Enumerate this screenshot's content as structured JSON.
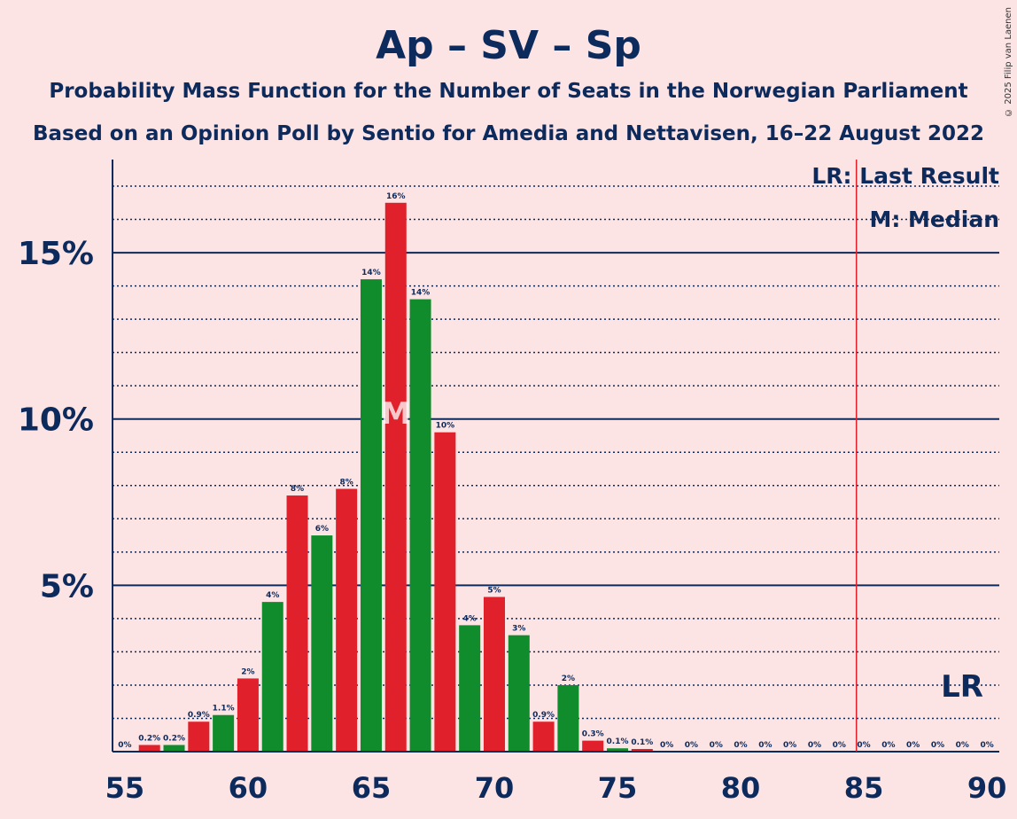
{
  "header": {
    "title": "Ap – SV – Sp",
    "subtitle1": "Probability Mass Function for the Number of Seats in the Norwegian Parliament",
    "subtitle2": "Based on an Opinion Poll by Sentio for Amedia and Nettavisen, 16–22 August 2022",
    "copyright": "© 2025 Filip van Laenen"
  },
  "legend": {
    "last_result": "LR: Last Result",
    "median": "M: Median"
  },
  "colors": {
    "background": "#fde4e4",
    "text": "#0c2a5c",
    "red_bar": "#e0202a",
    "green_bar": "#108c2c",
    "last_result_line": "#e0202a"
  },
  "chart_data": {
    "type": "bar",
    "x": [
      55,
      56,
      57,
      58,
      59,
      60,
      61,
      62,
      63,
      64,
      65,
      66,
      67,
      68,
      69,
      70,
      71,
      72,
      73,
      74,
      75,
      76,
      77,
      78,
      79,
      80,
      81,
      82,
      83,
      84,
      85,
      86,
      87,
      88,
      89,
      90
    ],
    "values": [
      0.0,
      0.2,
      0.2,
      0.9,
      1.1,
      2.2,
      4.5,
      7.7,
      6.5,
      7.9,
      14.2,
      16.5,
      13.6,
      9.6,
      3.8,
      4.65,
      3.5,
      0.9,
      2.0,
      0.33,
      0.1,
      0.08,
      0,
      0,
      0,
      0,
      0,
      0,
      0,
      0,
      0,
      0,
      0,
      0,
      0,
      0
    ],
    "labels": [
      "0%",
      "0.2%",
      "0.2%",
      "0.9%",
      "1.1%",
      "2%",
      "4%",
      "8%",
      "6%",
      "8%",
      "14%",
      "16%",
      "14%",
      "10%",
      "4%",
      "5%",
      "3%",
      "0.9%",
      "2%",
      "0.3%",
      "0.1%",
      "0.1%",
      "0%",
      "0%",
      "0%",
      "0%",
      "0%",
      "0%",
      "0%",
      "0%",
      "0%",
      "0%",
      "0%",
      "0%",
      "0%",
      "0%"
    ],
    "x_ticks": [
      55,
      60,
      65,
      70,
      75,
      80,
      85,
      90
    ],
    "x_tick_labels": [
      "55",
      "60",
      "65",
      "70",
      "75",
      "80",
      "85",
      "90"
    ],
    "y_ticks": [
      5,
      10,
      15
    ],
    "y_tick_labels": [
      "5%",
      "10%",
      "15%"
    ],
    "y_minor_step": 1,
    "ylim": [
      0,
      17.8
    ],
    "xlim": [
      54.5,
      90.5
    ],
    "median": 66,
    "median_label": "M",
    "last_result": 84.7,
    "last_result_label": "LR",
    "title": "Ap – SV – Sp",
    "xlabel": "",
    "ylabel": ""
  }
}
